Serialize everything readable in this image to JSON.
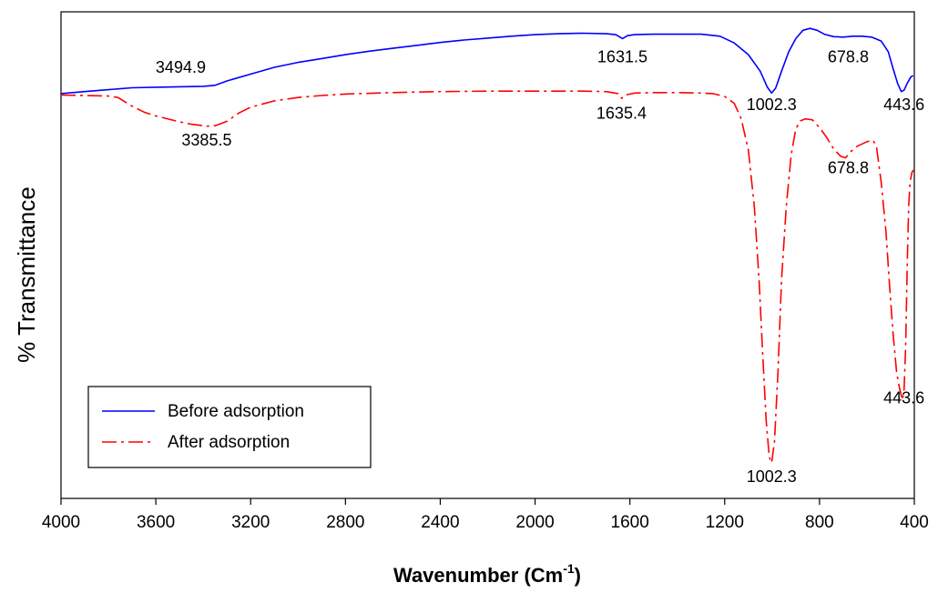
{
  "chart_data": {
    "type": "line",
    "xlabel": "Wavenumber (Cm",
    "xlabel_sup": "-1",
    "xlabel_tail": ")",
    "ylabel": "% Transmittance",
    "xlim": [
      4000,
      400
    ],
    "x_reversed": true,
    "ylim": [
      0,
      100
    ],
    "y_ticks_shown": false,
    "grid": false,
    "legend_position": "bottom-left",
    "x_ticks": [
      4000,
      3600,
      3200,
      2800,
      2400,
      2000,
      1600,
      1200,
      800,
      400
    ],
    "x_tick_labels": [
      "4000",
      "3600",
      "3200",
      "2800",
      "2400",
      "2000",
      "1600",
      "1200",
      "800",
      "400"
    ],
    "series": [
      {
        "name": "Before adsorption",
        "color": "#0000ff",
        "dash": "solid",
        "points": [
          [
            4000,
            83.2
          ],
          [
            3900,
            83.6
          ],
          [
            3800,
            84.0
          ],
          [
            3700,
            84.4
          ],
          [
            3600,
            84.5
          ],
          [
            3500,
            84.6
          ],
          [
            3400,
            84.7
          ],
          [
            3350,
            84.9
          ],
          [
            3300,
            85.8
          ],
          [
            3200,
            87.2
          ],
          [
            3100,
            88.6
          ],
          [
            3000,
            89.6
          ],
          [
            2900,
            90.4
          ],
          [
            2800,
            91.2
          ],
          [
            2700,
            91.9
          ],
          [
            2600,
            92.5
          ],
          [
            2500,
            93.1
          ],
          [
            2400,
            93.7
          ],
          [
            2300,
            94.2
          ],
          [
            2200,
            94.6
          ],
          [
            2100,
            95.0
          ],
          [
            2000,
            95.3
          ],
          [
            1900,
            95.5
          ],
          [
            1800,
            95.6
          ],
          [
            1700,
            95.5
          ],
          [
            1660,
            95.3
          ],
          [
            1631,
            94.5
          ],
          [
            1610,
            95.1
          ],
          [
            1580,
            95.3
          ],
          [
            1500,
            95.4
          ],
          [
            1400,
            95.4
          ],
          [
            1300,
            95.4
          ],
          [
            1220,
            95.0
          ],
          [
            1160,
            93.6
          ],
          [
            1100,
            91.2
          ],
          [
            1050,
            87.8
          ],
          [
            1020,
            84.5
          ],
          [
            1002,
            83.3
          ],
          [
            985,
            84.3
          ],
          [
            960,
            87.8
          ],
          [
            930,
            91.8
          ],
          [
            900,
            94.5
          ],
          [
            870,
            96.2
          ],
          [
            840,
            96.6
          ],
          [
            810,
            96.2
          ],
          [
            780,
            95.4
          ],
          [
            740,
            94.9
          ],
          [
            700,
            94.8
          ],
          [
            660,
            95.0
          ],
          [
            620,
            95.0
          ],
          [
            580,
            94.8
          ],
          [
            540,
            94.0
          ],
          [
            510,
            91.8
          ],
          [
            490,
            88.4
          ],
          [
            470,
            85.2
          ],
          [
            455,
            83.6
          ],
          [
            443,
            83.9
          ],
          [
            430,
            85.3
          ],
          [
            415,
            86.6
          ],
          [
            405,
            86.9
          ]
        ]
      },
      {
        "name": "After adsorption",
        "color": "#ff0000",
        "dash": "dash-dot",
        "points": [
          [
            4000,
            82.9
          ],
          [
            3900,
            82.8
          ],
          [
            3800,
            82.7
          ],
          [
            3760,
            82.4
          ],
          [
            3700,
            80.6
          ],
          [
            3650,
            79.4
          ],
          [
            3600,
            78.6
          ],
          [
            3500,
            77.4
          ],
          [
            3450,
            76.9
          ],
          [
            3400,
            76.6
          ],
          [
            3385,
            76.5
          ],
          [
            3350,
            76.6
          ],
          [
            3300,
            77.5
          ],
          [
            3250,
            79.2
          ],
          [
            3200,
            80.4
          ],
          [
            3100,
            81.7
          ],
          [
            3000,
            82.4
          ],
          [
            2900,
            82.8
          ],
          [
            2800,
            83.1
          ],
          [
            2600,
            83.4
          ],
          [
            2400,
            83.6
          ],
          [
            2200,
            83.7
          ],
          [
            2000,
            83.7
          ],
          [
            1800,
            83.7
          ],
          [
            1700,
            83.6
          ],
          [
            1650,
            83.2
          ],
          [
            1635,
            82.2
          ],
          [
            1620,
            82.9
          ],
          [
            1580,
            83.3
          ],
          [
            1500,
            83.4
          ],
          [
            1400,
            83.4
          ],
          [
            1300,
            83.3
          ],
          [
            1250,
            83.2
          ],
          [
            1200,
            82.6
          ],
          [
            1160,
            81.2
          ],
          [
            1130,
            78.0
          ],
          [
            1100,
            71.5
          ],
          [
            1075,
            60.0
          ],
          [
            1055,
            45.0
          ],
          [
            1040,
            30.0
          ],
          [
            1025,
            16.0
          ],
          [
            1012,
            8.5
          ],
          [
            1002,
            7.3
          ],
          [
            990,
            11.5
          ],
          [
            975,
            26.0
          ],
          [
            960,
            45.0
          ],
          [
            940,
            60.0
          ],
          [
            920,
            70.5
          ],
          [
            900,
            76.0
          ],
          [
            880,
            77.6
          ],
          [
            860,
            78.0
          ],
          [
            830,
            77.8
          ],
          [
            800,
            76.2
          ],
          [
            770,
            74.2
          ],
          [
            740,
            71.8
          ],
          [
            710,
            70.3
          ],
          [
            690,
            70.0
          ],
          [
            670,
            71.2
          ],
          [
            640,
            72.4
          ],
          [
            600,
            73.3
          ],
          [
            575,
            73.6
          ],
          [
            560,
            72.4
          ],
          [
            540,
            65.0
          ],
          [
            520,
            55.0
          ],
          [
            505,
            44.0
          ],
          [
            490,
            34.0
          ],
          [
            475,
            26.0
          ],
          [
            462,
            22.5
          ],
          [
            450,
            20.2
          ],
          [
            443,
            22.5
          ],
          [
            436,
            32.0
          ],
          [
            430,
            48.0
          ],
          [
            424,
            60.0
          ],
          [
            418,
            65.0
          ],
          [
            410,
            67.0
          ],
          [
            403,
            67.5
          ]
        ]
      }
    ],
    "annotations": [
      {
        "text": "3494.9",
        "x": 3494.9,
        "y": 87.5,
        "series": "Before adsorption"
      },
      {
        "text": "1631.5",
        "x": 1631.5,
        "y": 89.6,
        "series": "Before adsorption"
      },
      {
        "text": "1002.3",
        "x": 1002.3,
        "y": 79.8,
        "series": "Before adsorption"
      },
      {
        "text": "678.8",
        "x": 678.8,
        "y": 89.6,
        "series": "Before adsorption"
      },
      {
        "text": "443.6",
        "x": 443.6,
        "y": 79.8,
        "series": "Before adsorption"
      },
      {
        "text": "3385.5",
        "x": 3385.5,
        "y": 72.5,
        "series": "After adsorption"
      },
      {
        "text": "1635.4",
        "x": 1635.4,
        "y": 78.0,
        "series": "After adsorption"
      },
      {
        "text": "678.8",
        "x": 678.8,
        "y": 66.8,
        "series": "After adsorption"
      },
      {
        "text": "443.6",
        "x": 443.6,
        "y": 19.5,
        "series": "After adsorption"
      },
      {
        "text": "1002.3",
        "x": 1002.3,
        "y": 3.4,
        "series": "After adsorption"
      }
    ]
  }
}
